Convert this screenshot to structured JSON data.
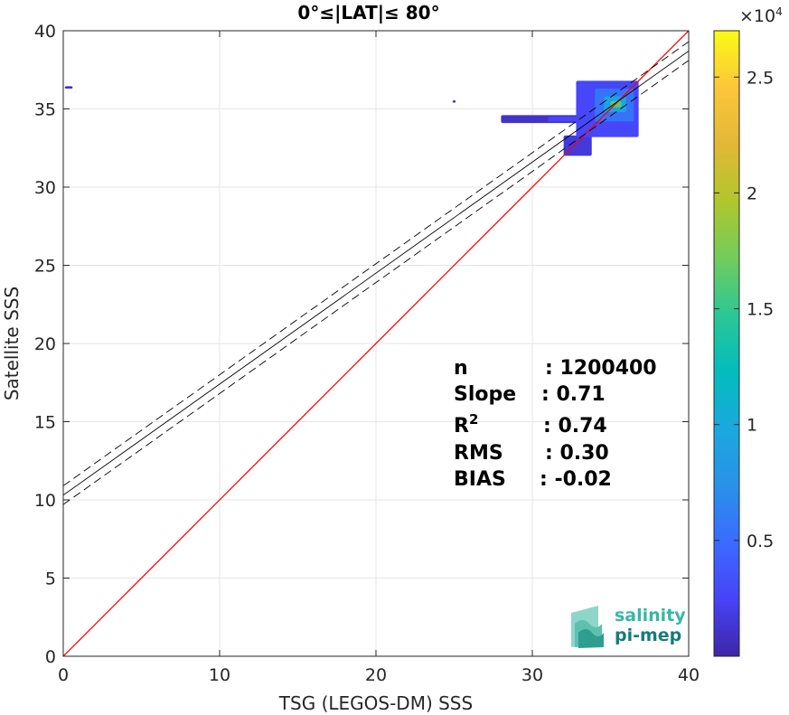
{
  "chart_data": {
    "type": "heatmap",
    "title": "0°≤|LAT|≤ 80°",
    "xlabel": "TSG (LEGOS-DM) SSS",
    "ylabel": "Satellite SSS",
    "xlim": [
      0,
      40
    ],
    "ylim": [
      0,
      40
    ],
    "xticks": [
      "0",
      "10",
      "20",
      "30",
      "40"
    ],
    "yticks": [
      "0",
      "5",
      "10",
      "15",
      "20",
      "25",
      "30",
      "35",
      "40"
    ],
    "grid": true,
    "colorbar": {
      "min": 0,
      "max": 27000,
      "multiplier": "×10",
      "exponent": "4",
      "ticks": [
        {
          "value": 5000,
          "label": "0.5"
        },
        {
          "value": 10000,
          "label": "1"
        },
        {
          "value": 15000,
          "label": "1.5"
        },
        {
          "value": 20000,
          "label": "2"
        },
        {
          "value": 25000,
          "label": "2.5"
        }
      ],
      "colors": [
        "#3e26a8",
        "#4743f8",
        "#3a6bff",
        "#2991e8",
        "#1aa9de",
        "#03bcbd",
        "#2bc795",
        "#72cc5b",
        "#b1c62c",
        "#e3b737",
        "#fcc63a",
        "#f9fb15"
      ]
    },
    "lines": [
      {
        "name": "1:1",
        "color": "#ff0000",
        "points": [
          [
            0,
            0
          ],
          [
            40,
            40
          ]
        ]
      },
      {
        "name": "fit",
        "color": "#000000",
        "style": "solid",
        "points": [
          [
            0,
            10.3
          ],
          [
            40,
            38.7
          ]
        ]
      },
      {
        "name": "fit-upper",
        "color": "#000000",
        "style": "dashed",
        "points": [
          [
            0,
            10.9
          ],
          [
            40,
            39.3
          ]
        ]
      },
      {
        "name": "fit-lower",
        "color": "#000000",
        "style": "dashed",
        "points": [
          [
            0,
            9.7
          ],
          [
            40,
            38.1
          ]
        ]
      }
    ],
    "density_blobs": [
      {
        "x": [
          28.0,
          35.2
        ],
        "y": [
          34.1,
          34.6
        ],
        "level": 0.04
      },
      {
        "x": [
          31.0,
          35.0
        ],
        "y": [
          34.2,
          34.5
        ],
        "level": 0.1
      },
      {
        "x": [
          32.0,
          33.8
        ],
        "y": [
          32.0,
          33.3
        ],
        "level": 0.06
      },
      {
        "x": [
          32.8,
          36.8
        ],
        "y": [
          33.2,
          36.8
        ],
        "level": 0.1
      },
      {
        "x": [
          34.0,
          36.5
        ],
        "y": [
          34.2,
          36.3
        ],
        "level": 0.2
      },
      {
        "x": [
          34.6,
          36.0
        ],
        "y": [
          34.8,
          35.8
        ],
        "level": 0.35
      },
      {
        "x": [
          35.0,
          35.7
        ],
        "y": [
          35.1,
          35.5
        ],
        "level": 0.6
      },
      {
        "x": [
          0.1,
          0.6
        ],
        "y": [
          36.3,
          36.45
        ],
        "level": 0.03
      },
      {
        "x": [
          24.9,
          25.1
        ],
        "y": [
          35.4,
          35.55
        ],
        "level": 0.03
      }
    ],
    "stats": [
      {
        "label": "n",
        "value": ": 1200400"
      },
      {
        "label": "Slope",
        "value": ": 0.71"
      },
      {
        "label": "R",
        "sup": "2",
        "value": ": 0.74"
      },
      {
        "label": "RMS",
        "value": ": 0.30"
      },
      {
        "label": "BIAS",
        "value": ": -0.02"
      }
    ]
  },
  "logo": {
    "line1": "salinity",
    "line2": "pi-mep",
    "color_dark": "#157c7a",
    "color_light": "#37b7a4"
  }
}
